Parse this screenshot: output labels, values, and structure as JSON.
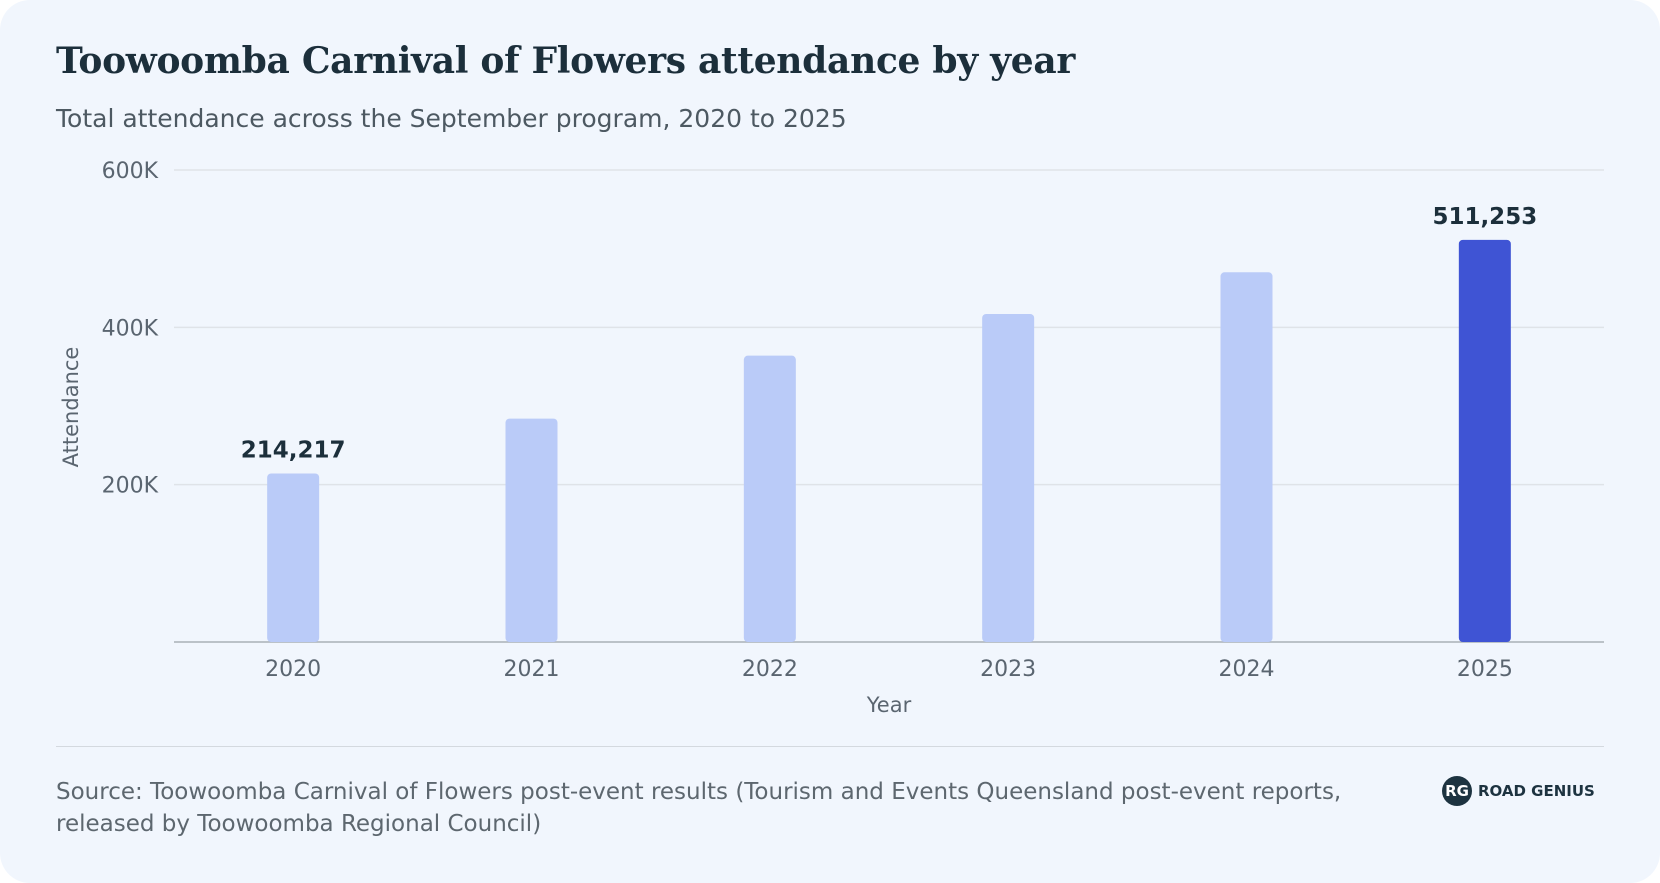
{
  "header": {
    "title": "Toowoomba Carnival of Flowers attendance by year",
    "subtitle": "Total attendance across the September program, 2020 to 2025"
  },
  "chart_data": {
    "type": "bar",
    "title": "Toowoomba Carnival of Flowers attendance by year",
    "subtitle": "Total attendance across the September program, 2020 to 2025",
    "xlabel": "Year",
    "ylabel": "Attendance",
    "categories": [
      "2020",
      "2021",
      "2022",
      "2023",
      "2024",
      "2025"
    ],
    "values": [
      214217,
      284000,
      364000,
      417000,
      470000,
      511253
    ],
    "ylim": [
      0,
      600000
    ],
    "yticks": [
      200000,
      400000,
      600000
    ],
    "ytick_labels": [
      "200K",
      "400K",
      "600K"
    ],
    "data_labels": [
      {
        "category": "2020",
        "text": "214,217"
      },
      {
        "category": "2025",
        "text": "511,253"
      }
    ],
    "highlight_category": "2025",
    "grid": true,
    "legend": "none",
    "colors": {
      "bar": "#bacbf8",
      "highlight": "#3f54d4",
      "grid": "#dfe3e8",
      "axis": "#a9b0b7",
      "tick_text": "#5a6570",
      "label_text": "#1c2f3b"
    }
  },
  "footer": {
    "source": "Source: Toowoomba Carnival of Flowers post-event results (Tourism and Events Queensland post-event reports, released by Toowoomba Regional Council)",
    "brand_initials": "RG",
    "brand_name": "ROAD GENIUS",
    "brand_icon": "road-genius-logo-icon"
  }
}
